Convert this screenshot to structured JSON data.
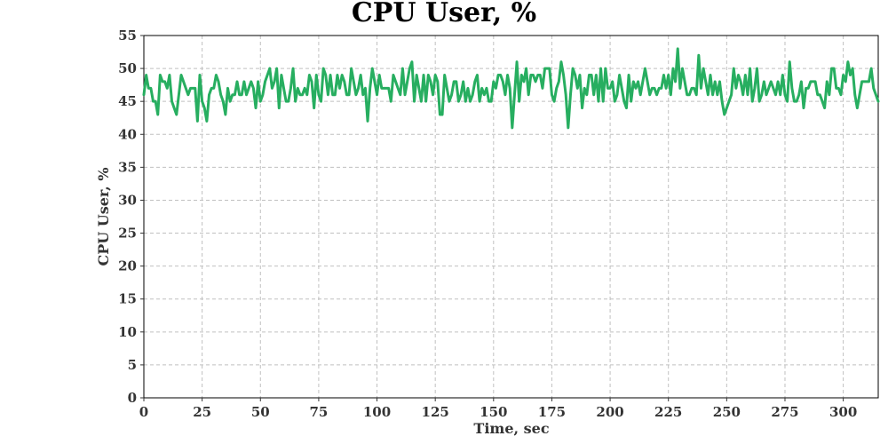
{
  "chart_data": {
    "type": "line",
    "title": "CPU User, %",
    "xlabel": "Time, sec",
    "ylabel": "CPU User, %",
    "xlim": [
      0,
      315
    ],
    "ylim": [
      0,
      55
    ],
    "x_ticks": [
      0,
      25,
      50,
      75,
      100,
      125,
      150,
      175,
      200,
      225,
      250,
      275,
      300
    ],
    "y_ticks": [
      0,
      5,
      10,
      15,
      20,
      25,
      30,
      35,
      40,
      45,
      50,
      55
    ],
    "grid": true,
    "legend": "none",
    "series": [
      {
        "color": "#27ae60",
        "x_start": 0,
        "x_step": 1,
        "values": [
          46,
          49,
          47,
          47,
          45,
          45,
          43,
          49,
          48,
          48,
          47,
          49,
          45,
          44,
          43,
          46,
          49,
          48,
          47,
          46,
          47,
          47,
          47,
          42,
          49,
          45,
          44,
          42,
          46,
          47,
          47,
          49,
          48,
          46,
          45,
          43,
          47,
          45,
          46,
          46,
          48,
          46,
          46,
          48,
          46,
          47,
          48,
          47,
          44,
          48,
          45,
          46,
          48,
          49,
          50,
          47,
          48,
          50,
          44,
          49,
          47,
          45,
          45,
          47,
          50,
          45,
          47,
          46,
          46,
          47,
          46,
          49,
          48,
          44,
          49,
          46,
          45,
          50,
          49,
          46,
          49,
          46,
          46,
          49,
          47,
          49,
          48,
          46,
          46,
          50,
          48,
          46,
          47,
          49,
          46,
          47,
          42,
          47,
          50,
          48,
          46,
          49,
          47,
          47,
          47,
          47,
          45,
          49,
          48,
          47,
          46,
          50,
          46,
          48,
          50,
          51,
          45,
          49,
          47,
          45,
          49,
          45,
          49,
          48,
          46,
          49,
          48,
          43,
          43,
          49,
          47,
          45,
          46,
          48,
          48,
          45,
          46,
          48,
          45,
          47,
          45,
          46,
          48,
          49,
          45,
          47,
          46,
          47,
          45,
          45,
          48,
          47,
          49,
          49,
          48,
          46,
          49,
          47,
          41,
          46,
          51,
          45,
          49,
          48,
          50,
          46,
          49,
          49,
          48,
          49,
          49,
          47,
          50,
          50,
          50,
          46,
          45,
          47,
          48,
          51,
          49,
          46,
          41,
          46,
          50,
          49,
          47,
          49,
          44,
          47,
          46,
          49,
          49,
          46,
          49,
          45,
          50,
          45,
          50,
          47,
          47,
          48,
          45,
          46,
          49,
          47,
          45,
          44,
          49,
          45,
          48,
          47,
          48,
          46,
          48,
          50,
          48,
          46,
          47,
          47,
          46,
          47,
          47,
          49,
          47,
          49,
          46,
          50,
          48,
          53,
          47,
          50,
          48,
          46,
          46,
          47,
          47,
          46,
          52,
          47,
          50,
          48,
          46,
          49,
          46,
          48,
          46,
          48,
          45,
          43,
          44,
          45,
          46,
          50,
          47,
          49,
          48,
          46,
          49,
          46,
          50,
          45,
          47,
          50,
          45,
          46,
          48,
          46,
          47,
          48,
          47,
          46,
          48,
          46,
          49,
          46,
          45,
          51,
          47,
          45,
          45,
          46,
          48,
          44,
          47,
          47,
          48,
          48,
          48,
          46,
          46,
          45,
          44,
          48,
          46,
          50,
          50,
          47,
          47,
          46,
          49,
          48,
          51,
          49,
          50,
          46,
          44,
          46,
          48,
          48,
          48,
          48,
          50,
          47,
          46,
          45
        ]
      }
    ]
  }
}
